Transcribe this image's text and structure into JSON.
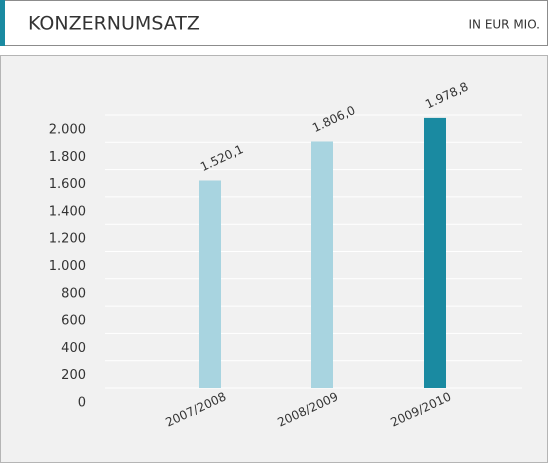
{
  "chart_data": {
    "type": "bar",
    "title": "KONZERNUMSATZ",
    "subtitle": "IN EUR MIO.",
    "categories": [
      "2007/2008",
      "2008/2009",
      "2009/2010"
    ],
    "values": [
      1520.1,
      1806.0,
      1978.8
    ],
    "value_labels": [
      "1.520,1",
      "1.806,0",
      "1.978,8"
    ],
    "colors": [
      "#a8d4e0",
      "#a8d4e0",
      "#1a8aa1"
    ],
    "ylim": [
      0,
      2000
    ],
    "yticks": [
      0,
      200,
      400,
      600,
      800,
      {
        "value": 1000,
        "label": "1.000"
      },
      {
        "value": 1200,
        "label": "1.200"
      },
      {
        "value": 1400,
        "label": "1.400"
      },
      {
        "value": 1600,
        "label": "1.600"
      },
      {
        "value": 1800,
        "label": "1.800"
      },
      {
        "value": 2000,
        "label": "2.000"
      }
    ],
    "grid": true
  }
}
